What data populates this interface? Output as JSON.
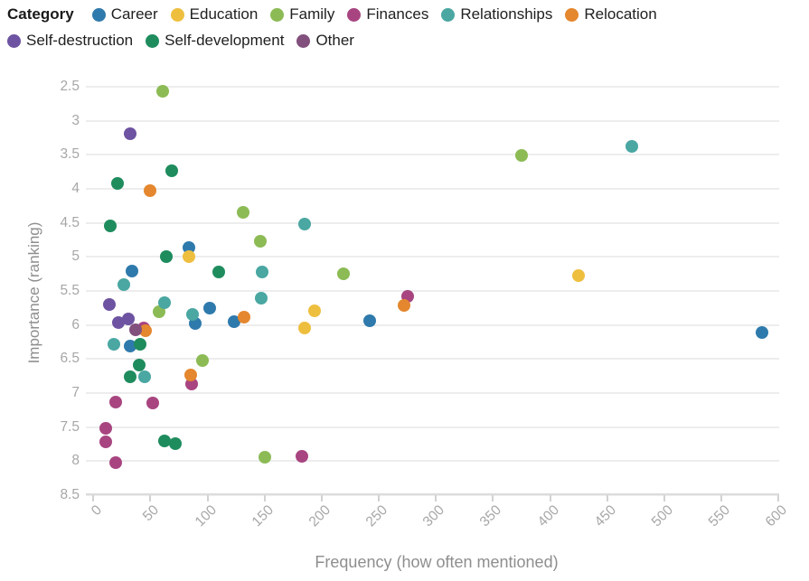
{
  "legend": {
    "title": "Category",
    "items": [
      {
        "label": "Career",
        "color": "#2f7aac"
      },
      {
        "label": "Education",
        "color": "#eebf3f"
      },
      {
        "label": "Family",
        "color": "#8cbb55"
      },
      {
        "label": "Finances",
        "color": "#a84580"
      },
      {
        "label": "Relationships",
        "color": "#4aa7a2"
      },
      {
        "label": "Relocation",
        "color": "#e4872e"
      },
      {
        "label": "Self-destruction",
        "color": "#6d53a1"
      },
      {
        "label": "Self-development",
        "color": "#1f8c5e"
      },
      {
        "label": "Other",
        "color": "#82507d"
      }
    ]
  },
  "chart_data": {
    "type": "scatter",
    "xlabel": "Frequency (how often mentioned)",
    "ylabel": "Importance (ranking)",
    "x_ticks": [
      0,
      50,
      100,
      150,
      200,
      250,
      300,
      350,
      400,
      450,
      500,
      550,
      600
    ],
    "y_ticks": [
      "2.5",
      "3",
      "3.5",
      "4",
      "4.5",
      "5",
      "5.5",
      "6",
      "6.5",
      "7",
      "7.5",
      "8",
      "8.5"
    ],
    "xlim": [
      0,
      600
    ],
    "ylim": [
      2.5,
      8.5
    ],
    "y_axis_inverted": true,
    "grid": "horizontal-only",
    "legend_position": "top-left",
    "series": [
      {
        "name": "Career",
        "color": "#2f7aac",
        "points": [
          [
            84,
            4.86
          ],
          [
            34,
            5.21
          ],
          [
            102,
            5.75
          ],
          [
            123,
            5.95
          ],
          [
            89,
            5.98
          ],
          [
            242,
            5.94
          ],
          [
            586,
            6.11
          ],
          [
            32,
            6.31
          ]
        ]
      },
      {
        "name": "Education",
        "color": "#eebf3f",
        "points": [
          [
            84,
            5.0
          ],
          [
            425,
            5.28
          ],
          [
            194,
            5.8
          ],
          [
            185,
            6.05
          ]
        ]
      },
      {
        "name": "Family",
        "color": "#8cbb55",
        "points": [
          [
            61,
            2.56
          ],
          [
            375,
            3.51
          ],
          [
            131,
            4.34
          ],
          [
            146,
            4.77
          ],
          [
            219,
            5.25
          ],
          [
            58,
            5.81
          ],
          [
            96,
            6.53
          ],
          [
            150,
            7.95
          ]
        ]
      },
      {
        "name": "Finances",
        "color": "#a84580",
        "points": [
          [
            275,
            5.58
          ],
          [
            44,
            6.04
          ],
          [
            86,
            6.87
          ],
          [
            20,
            7.13
          ],
          [
            52,
            7.15
          ],
          [
            11,
            7.52
          ],
          [
            11,
            7.72
          ],
          [
            183,
            7.93
          ],
          [
            20,
            8.03
          ]
        ]
      },
      {
        "name": "Relationships",
        "color": "#4aa7a2",
        "points": [
          [
            472,
            3.37
          ],
          [
            185,
            4.52
          ],
          [
            148,
            5.22
          ],
          [
            27,
            5.41
          ],
          [
            147,
            5.61
          ],
          [
            62,
            5.68
          ],
          [
            87,
            5.85
          ],
          [
            18,
            6.29
          ],
          [
            45,
            6.76
          ]
        ]
      },
      {
        "name": "Relocation",
        "color": "#e4872e",
        "points": [
          [
            50,
            4.03
          ],
          [
            272,
            5.71
          ],
          [
            132,
            5.89
          ],
          [
            46,
            6.09
          ],
          [
            85,
            6.74
          ]
        ]
      },
      {
        "name": "Self-destruction",
        "color": "#6d53a1",
        "points": [
          [
            32,
            3.19
          ],
          [
            14,
            5.7
          ],
          [
            31,
            5.91
          ],
          [
            22,
            5.97
          ]
        ]
      },
      {
        "name": "Self-development",
        "color": "#1f8c5e",
        "points": [
          [
            69,
            3.73
          ],
          [
            21,
            3.92
          ],
          [
            15,
            4.54
          ],
          [
            64,
            5.0
          ],
          [
            110,
            5.22
          ],
          [
            41,
            6.29
          ],
          [
            40,
            6.59
          ],
          [
            32,
            6.76
          ],
          [
            62,
            7.71
          ],
          [
            72,
            7.74
          ]
        ]
      },
      {
        "name": "Other",
        "color": "#82507d",
        "points": [
          [
            37,
            6.07
          ]
        ]
      }
    ]
  }
}
